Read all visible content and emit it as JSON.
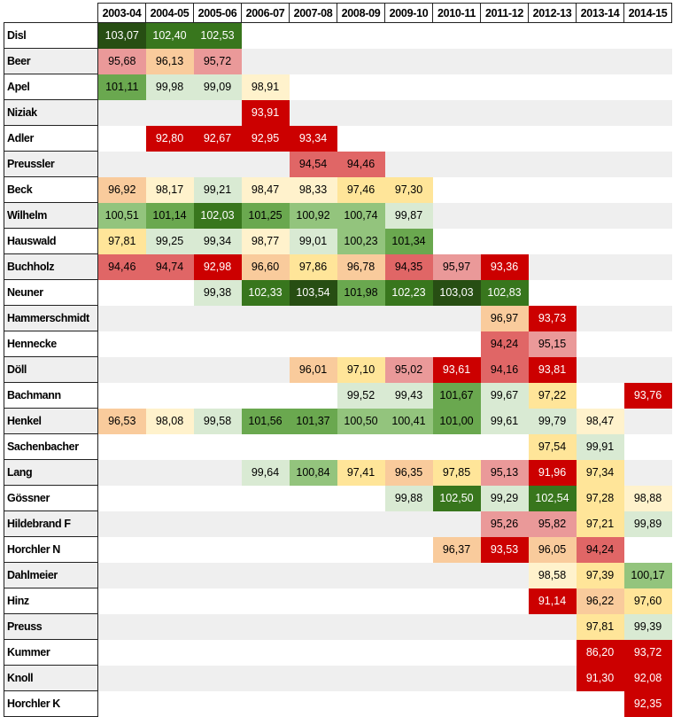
{
  "chart_data": {
    "type": "heatmap",
    "title": "",
    "columns": [
      "2003-04",
      "2004-05",
      "2005-06",
      "2006-07",
      "2007-08",
      "2008-09",
      "2009-10",
      "2010-11",
      "2011-12",
      "2012-13",
      "2013-14",
      "2014-15"
    ],
    "rows": [
      {
        "name": "Disl",
        "values": [
          "103,07",
          "102,40",
          "102,53",
          null,
          null,
          null,
          null,
          null,
          null,
          null,
          null,
          null
        ]
      },
      {
        "name": "Beer",
        "values": [
          "95,68",
          "96,13",
          "95,72",
          null,
          null,
          null,
          null,
          null,
          null,
          null,
          null,
          null
        ]
      },
      {
        "name": "Apel",
        "values": [
          "101,11",
          "99,98",
          "99,09",
          "98,91",
          null,
          null,
          null,
          null,
          null,
          null,
          null,
          null
        ]
      },
      {
        "name": "Niziak",
        "values": [
          null,
          null,
          null,
          "93,91",
          null,
          null,
          null,
          null,
          null,
          null,
          null,
          null
        ]
      },
      {
        "name": "Adler",
        "values": [
          null,
          "92,80",
          "92,67",
          "92,95",
          "93,34",
          null,
          null,
          null,
          null,
          null,
          null,
          null
        ]
      },
      {
        "name": "Preussler",
        "values": [
          null,
          null,
          null,
          null,
          "94,54",
          "94,46",
          null,
          null,
          null,
          null,
          null,
          null
        ]
      },
      {
        "name": "Beck",
        "values": [
          "96,92",
          "98,17",
          "99,21",
          "98,47",
          "98,33",
          "97,46",
          "97,30",
          null,
          null,
          null,
          null,
          null
        ]
      },
      {
        "name": "Wilhelm",
        "values": [
          "100,51",
          "101,14",
          "102,03",
          "101,25",
          "100,92",
          "100,74",
          "99,87",
          null,
          null,
          null,
          null,
          null
        ]
      },
      {
        "name": "Hauswald",
        "values": [
          "97,81",
          "99,25",
          "99,34",
          "98,77",
          "99,01",
          "100,23",
          "101,34",
          null,
          null,
          null,
          null,
          null
        ]
      },
      {
        "name": "Buchholz",
        "values": [
          "94,46",
          "94,74",
          "92,98",
          "96,60",
          "97,86",
          "96,78",
          "94,35",
          "95,97",
          "93,36",
          null,
          null,
          null
        ]
      },
      {
        "name": "Neuner",
        "values": [
          null,
          null,
          "99,38",
          "102,33",
          "103,54",
          "101,98",
          "102,23",
          "103,03",
          "102,83",
          null,
          null,
          null
        ]
      },
      {
        "name": "Hammerschmidt",
        "values": [
          null,
          null,
          null,
          null,
          null,
          null,
          null,
          null,
          "96,97",
          "93,73",
          null,
          null
        ]
      },
      {
        "name": "Hennecke",
        "values": [
          null,
          null,
          null,
          null,
          null,
          null,
          null,
          null,
          "94,24",
          "95,15",
          null,
          null
        ]
      },
      {
        "name": "Döll",
        "values": [
          null,
          null,
          null,
          null,
          "96,01",
          "97,10",
          "95,02",
          "93,61",
          "94,16",
          "93,81",
          null,
          null
        ]
      },
      {
        "name": "Bachmann",
        "values": [
          null,
          null,
          null,
          null,
          null,
          "99,52",
          "99,43",
          "101,67",
          "99,67",
          "97,22",
          null,
          "93,76"
        ]
      },
      {
        "name": "Henkel",
        "values": [
          "96,53",
          "98,08",
          "99,58",
          "101,56",
          "101,37",
          "100,50",
          "100,41",
          "101,00",
          "99,61",
          "99,79",
          "98,47",
          null
        ]
      },
      {
        "name": "Sachenbacher",
        "values": [
          null,
          null,
          null,
          null,
          null,
          null,
          null,
          null,
          null,
          "97,54",
          "99,91",
          null
        ]
      },
      {
        "name": "Lang",
        "values": [
          null,
          null,
          null,
          "99,64",
          "100,84",
          "97,41",
          "96,35",
          "97,85",
          "95,13",
          "91,96",
          "97,34",
          null
        ]
      },
      {
        "name": "Gössner",
        "values": [
          null,
          null,
          null,
          null,
          null,
          null,
          "99,88",
          "102,50",
          "99,29",
          "102,54",
          "97,28",
          "98,88"
        ]
      },
      {
        "name": "Hildebrand F",
        "values": [
          null,
          null,
          null,
          null,
          null,
          null,
          null,
          null,
          "95,26",
          "95,82",
          "97,21",
          "99,89"
        ]
      },
      {
        "name": "Horchler N",
        "values": [
          null,
          null,
          null,
          null,
          null,
          null,
          null,
          "96,37",
          "93,53",
          "96,05",
          "94,24",
          null
        ]
      },
      {
        "name": "Dahlmeier",
        "values": [
          null,
          null,
          null,
          null,
          null,
          null,
          null,
          null,
          null,
          "98,58",
          "97,39",
          "100,17"
        ]
      },
      {
        "name": "Hinz",
        "values": [
          null,
          null,
          null,
          null,
          null,
          null,
          null,
          null,
          null,
          "91,14",
          "96,22",
          "97,60"
        ]
      },
      {
        "name": "Preuss",
        "values": [
          null,
          null,
          null,
          null,
          null,
          null,
          null,
          null,
          null,
          null,
          "97,81",
          "99,39"
        ]
      },
      {
        "name": "Kummer",
        "values": [
          null,
          null,
          null,
          null,
          null,
          null,
          null,
          null,
          null,
          null,
          "86,20",
          "93,72"
        ]
      },
      {
        "name": "Knoll",
        "values": [
          null,
          null,
          null,
          null,
          null,
          null,
          null,
          null,
          null,
          null,
          "91,30",
          "92,08"
        ]
      },
      {
        "name": "Horchler K",
        "values": [
          null,
          null,
          null,
          null,
          null,
          null,
          null,
          null,
          null,
          null,
          null,
          "92,35"
        ]
      }
    ],
    "color_scale": [
      {
        "min": 103,
        "color": "#274e13"
      },
      {
        "min": 102,
        "color": "#38761d"
      },
      {
        "min": 101,
        "color": "#6aa84f"
      },
      {
        "min": 100,
        "color": "#93c47d"
      },
      {
        "min": 99,
        "color": "#d9ead3"
      },
      {
        "min": 98,
        "color": "#fff2cc"
      },
      {
        "min": 97,
        "color": "#ffe599"
      },
      {
        "min": 96,
        "color": "#f9cb9c"
      },
      {
        "min": 95,
        "color": "#ea9999"
      },
      {
        "min": 94,
        "color": "#e06666"
      },
      {
        "min": 0,
        "color": "#cc0000"
      }
    ]
  }
}
